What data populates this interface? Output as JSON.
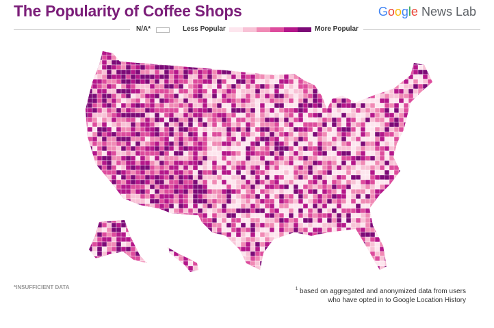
{
  "header": {
    "title": "The Popularity of Coffee Shops",
    "logo": {
      "brand": "Google",
      "product": "News Lab"
    }
  },
  "legend": {
    "na": "N/A*",
    "low": "Less Popular",
    "high": "More Popular"
  },
  "footnotes": {
    "insufficient": "*INSUFFICIENT DATA",
    "marker": "1",
    "source": [
      "based on aggregated and anonymized data from users",
      "who have opted in to Google Location History"
    ]
  }
}
